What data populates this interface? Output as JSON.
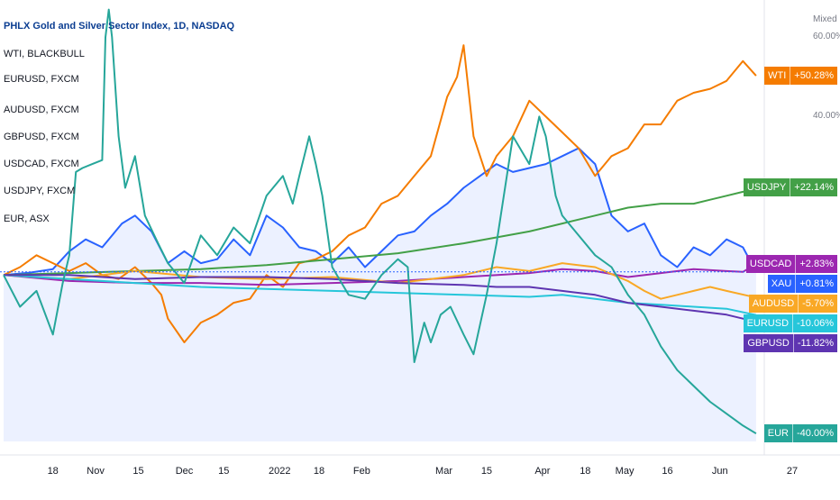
{
  "title": "PHLX Gold and Silver Sector Index, 1D, NASDAQ",
  "legend": [
    "WTI, BLACKBULL",
    "EURUSD, FXCM",
    "AUDUSD, FXCM",
    "GBPUSD, FXCM",
    "USDCAD, FXCM",
    "USDJPY, FXCM",
    "EUR, ASX"
  ],
  "scale_mode": "Mixed",
  "chart_data": {
    "type": "line",
    "title": "PHLX Gold and Silver Sector Index, 1D, NASDAQ",
    "y_unit": "%",
    "ylim": [
      -42,
      66
    ],
    "y_ticks": [
      {
        "value": 60,
        "label": "60.00%"
      },
      {
        "value": 40,
        "label": "40.00%"
      }
    ],
    "x_ticks": [
      {
        "day": 15,
        "label": "18"
      },
      {
        "day": 28,
        "label": "Nov"
      },
      {
        "day": 41,
        "label": "15"
      },
      {
        "day": 55,
        "label": "Dec"
      },
      {
        "day": 67,
        "label": "15"
      },
      {
        "day": 84,
        "label": "2022"
      },
      {
        "day": 96,
        "label": "18"
      },
      {
        "day": 109,
        "label": "Feb"
      },
      {
        "day": 134,
        "label": "Mar"
      },
      {
        "day": 147,
        "label": "15"
      },
      {
        "day": 164,
        "label": "Apr"
      },
      {
        "day": 177,
        "label": "18"
      },
      {
        "day": 189,
        "label": "May"
      },
      {
        "day": 202,
        "label": "16"
      },
      {
        "day": 218,
        "label": "Jun"
      },
      {
        "day": 240,
        "label": "27"
      }
    ],
    "grid": false,
    "series": [
      {
        "name": "XAU",
        "color": "#2962ff",
        "area": true,
        "last": 0.81,
        "label": "+0.81%",
        "points": [
          [
            0,
            0
          ],
          [
            8,
            0.6
          ],
          [
            15,
            1.5
          ],
          [
            20,
            6
          ],
          [
            25,
            9
          ],
          [
            30,
            7
          ],
          [
            36,
            13
          ],
          [
            40,
            15
          ],
          [
            45,
            11
          ],
          [
            50,
            3
          ],
          [
            55,
            6
          ],
          [
            60,
            3
          ],
          [
            65,
            4
          ],
          [
            70,
            9
          ],
          [
            75,
            5
          ],
          [
            80,
            15
          ],
          [
            85,
            12
          ],
          [
            90,
            7
          ],
          [
            95,
            6
          ],
          [
            100,
            3
          ],
          [
            105,
            7
          ],
          [
            110,
            2
          ],
          [
            115,
            6
          ],
          [
            120,
            10
          ],
          [
            125,
            11
          ],
          [
            130,
            15
          ],
          [
            135,
            18
          ],
          [
            140,
            22
          ],
          [
            145,
            25
          ],
          [
            150,
            28
          ],
          [
            155,
            26
          ],
          [
            160,
            27
          ],
          [
            165,
            28
          ],
          [
            170,
            30
          ],
          [
            175,
            32
          ],
          [
            180,
            28
          ],
          [
            185,
            15
          ],
          [
            190,
            11
          ],
          [
            195,
            13
          ],
          [
            200,
            5
          ],
          [
            205,
            2
          ],
          [
            210,
            7
          ],
          [
            215,
            5
          ],
          [
            220,
            9
          ],
          [
            225,
            7
          ],
          [
            229,
            0.8
          ]
        ]
      },
      {
        "name": "WTI",
        "color": "#f57c00",
        "area": false,
        "last": 50.28,
        "label": "+50.28%",
        "points": [
          [
            0,
            0
          ],
          [
            5,
            2
          ],
          [
            10,
            5
          ],
          [
            15,
            3
          ],
          [
            20,
            1
          ],
          [
            25,
            3
          ],
          [
            30,
            0
          ],
          [
            35,
            -1
          ],
          [
            40,
            2
          ],
          [
            45,
            -2
          ],
          [
            48,
            -5
          ],
          [
            50,
            -11
          ],
          [
            55,
            -17
          ],
          [
            60,
            -12
          ],
          [
            65,
            -10
          ],
          [
            70,
            -7
          ],
          [
            75,
            -6
          ],
          [
            80,
            0
          ],
          [
            85,
            -3
          ],
          [
            90,
            3
          ],
          [
            95,
            4
          ],
          [
            100,
            6
          ],
          [
            105,
            10
          ],
          [
            110,
            12
          ],
          [
            115,
            18
          ],
          [
            120,
            20
          ],
          [
            125,
            25
          ],
          [
            130,
            30
          ],
          [
            135,
            45
          ],
          [
            138,
            50
          ],
          [
            140,
            58
          ],
          [
            143,
            35
          ],
          [
            147,
            25
          ],
          [
            150,
            30
          ],
          [
            155,
            35
          ],
          [
            160,
            44
          ],
          [
            165,
            40
          ],
          [
            170,
            36
          ],
          [
            175,
            32
          ],
          [
            180,
            25
          ],
          [
            185,
            30
          ],
          [
            190,
            32
          ],
          [
            195,
            38
          ],
          [
            200,
            38
          ],
          [
            205,
            44
          ],
          [
            210,
            46
          ],
          [
            215,
            47
          ],
          [
            220,
            49
          ],
          [
            225,
            54
          ],
          [
            229,
            50.3
          ]
        ]
      },
      {
        "name": "USDJPY",
        "color": "#43a047",
        "area": false,
        "last": 22.14,
        "label": "+22.14%",
        "points": [
          [
            0,
            0
          ],
          [
            20,
            0.5
          ],
          [
            40,
            1
          ],
          [
            60,
            1.5
          ],
          [
            80,
            2.5
          ],
          [
            100,
            4
          ],
          [
            120,
            5.5
          ],
          [
            140,
            8
          ],
          [
            160,
            11
          ],
          [
            170,
            13
          ],
          [
            180,
            15
          ],
          [
            190,
            17
          ],
          [
            200,
            18
          ],
          [
            210,
            18
          ],
          [
            215,
            19
          ],
          [
            220,
            20
          ],
          [
            225,
            21
          ],
          [
            229,
            22.1
          ]
        ]
      },
      {
        "name": "USDCAD",
        "color": "#9c27b0",
        "area": false,
        "last": 2.83,
        "label": "+2.83%",
        "points": [
          [
            0,
            0
          ],
          [
            20,
            -1.5
          ],
          [
            40,
            -2
          ],
          [
            60,
            -2
          ],
          [
            80,
            -2.5
          ],
          [
            100,
            -2
          ],
          [
            120,
            -1.5
          ],
          [
            140,
            -0.5
          ],
          [
            160,
            0.5
          ],
          [
            170,
            1.5
          ],
          [
            180,
            1
          ],
          [
            190,
            -0.5
          ],
          [
            200,
            0.5
          ],
          [
            210,
            1.5
          ],
          [
            220,
            1
          ],
          [
            225,
            0.8
          ],
          [
            229,
            2.8
          ]
        ]
      },
      {
        "name": "AUDUSD",
        "color": "#f9a825",
        "area": false,
        "last": -5.7,
        "label": "-5.70%",
        "points": [
          [
            0,
            0
          ],
          [
            20,
            -1
          ],
          [
            40,
            1
          ],
          [
            60,
            -0.5
          ],
          [
            80,
            -1
          ],
          [
            100,
            -0.5
          ],
          [
            120,
            -2
          ],
          [
            140,
            0
          ],
          [
            150,
            2
          ],
          [
            160,
            1
          ],
          [
            170,
            3
          ],
          [
            180,
            2
          ],
          [
            190,
            -1.5
          ],
          [
            195,
            -4
          ],
          [
            200,
            -6
          ],
          [
            210,
            -4
          ],
          [
            215,
            -3
          ],
          [
            220,
            -4
          ],
          [
            229,
            -5.7
          ]
        ]
      },
      {
        "name": "EURUSD",
        "color": "#26c6da",
        "area": false,
        "last": -10.06,
        "label": "-10.06%",
        "points": [
          [
            0,
            0
          ],
          [
            20,
            -1
          ],
          [
            40,
            -2
          ],
          [
            60,
            -3
          ],
          [
            80,
            -3.5
          ],
          [
            100,
            -4
          ],
          [
            120,
            -4.5
          ],
          [
            140,
            -5
          ],
          [
            160,
            -5.5
          ],
          [
            170,
            -5
          ],
          [
            180,
            -6
          ],
          [
            190,
            -7
          ],
          [
            200,
            -7.5
          ],
          [
            210,
            -8
          ],
          [
            220,
            -8.5
          ],
          [
            229,
            -10.1
          ]
        ]
      },
      {
        "name": "GBPUSD",
        "color": "#5e35b1",
        "area": false,
        "last": -11.82,
        "label": "-11.82%",
        "points": [
          [
            0,
            0
          ],
          [
            20,
            0
          ],
          [
            40,
            -1
          ],
          [
            60,
            -0.5
          ],
          [
            80,
            -0.5
          ],
          [
            100,
            -1
          ],
          [
            120,
            -2
          ],
          [
            140,
            -2.5
          ],
          [
            150,
            -3
          ],
          [
            160,
            -3
          ],
          [
            170,
            -4
          ],
          [
            180,
            -5
          ],
          [
            190,
            -7
          ],
          [
            200,
            -8
          ],
          [
            210,
            -9
          ],
          [
            220,
            -10
          ],
          [
            229,
            -11.8
          ]
        ]
      },
      {
        "name": "EUR",
        "color": "#26a69a",
        "area": false,
        "last": -40.0,
        "label": "-40.00%",
        "points": [
          [
            0,
            0
          ],
          [
            5,
            -8
          ],
          [
            10,
            -4
          ],
          [
            15,
            -15
          ],
          [
            18,
            -2
          ],
          [
            20,
            5
          ],
          [
            22,
            26
          ],
          [
            24,
            27
          ],
          [
            27,
            28
          ],
          [
            30,
            29
          ],
          [
            31,
            60
          ],
          [
            32,
            67
          ],
          [
            33,
            60
          ],
          [
            35,
            35
          ],
          [
            37,
            22
          ],
          [
            40,
            30
          ],
          [
            43,
            15
          ],
          [
            47,
            8
          ],
          [
            50,
            3
          ],
          [
            55,
            -2
          ],
          [
            60,
            10
          ],
          [
            65,
            5
          ],
          [
            70,
            12
          ],
          [
            75,
            8
          ],
          [
            80,
            20
          ],
          [
            85,
            25
          ],
          [
            88,
            18
          ],
          [
            90,
            25
          ],
          [
            93,
            35
          ],
          [
            95,
            28
          ],
          [
            97,
            20
          ],
          [
            100,
            2
          ],
          [
            105,
            -5
          ],
          [
            110,
            -6
          ],
          [
            115,
            0
          ],
          [
            120,
            4
          ],
          [
            123,
            2
          ],
          [
            125,
            -22
          ],
          [
            128,
            -12
          ],
          [
            130,
            -17
          ],
          [
            133,
            -10
          ],
          [
            136,
            -8
          ],
          [
            140,
            -15
          ],
          [
            143,
            -20
          ],
          [
            147,
            -5
          ],
          [
            150,
            8
          ],
          [
            155,
            35
          ],
          [
            160,
            28
          ],
          [
            163,
            40
          ],
          [
            165,
            35
          ],
          [
            168,
            20
          ],
          [
            170,
            15
          ],
          [
            175,
            10
          ],
          [
            180,
            5
          ],
          [
            185,
            2
          ],
          [
            190,
            -5
          ],
          [
            195,
            -10
          ],
          [
            200,
            -18
          ],
          [
            205,
            -24
          ],
          [
            210,
            -28
          ],
          [
            215,
            -32
          ],
          [
            220,
            -35
          ],
          [
            225,
            -38
          ],
          [
            229,
            -40
          ]
        ]
      }
    ]
  }
}
